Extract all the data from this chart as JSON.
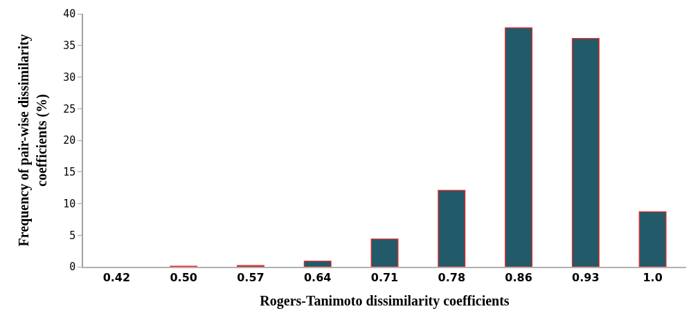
{
  "chart_data": {
    "type": "bar",
    "xlabel": "Rogers-Tanimoto dissimilarity coefficients",
    "ylabel": "Frequency of pair-wise dissimilarity coefficients (%)",
    "categories": [
      "0.42",
      "0.50",
      "0.57",
      "0.64",
      "0.71",
      "0.78",
      "0.86",
      "0.93",
      "1.0"
    ],
    "values": [
      0,
      0.1,
      0.2,
      0.9,
      4.4,
      12.1,
      37.8,
      36.1,
      8.7
    ],
    "color": "#225a69",
    "ylim": [
      0,
      40
    ],
    "yticks": [
      0,
      5,
      10,
      15,
      20,
      25,
      30,
      35,
      40
    ]
  }
}
